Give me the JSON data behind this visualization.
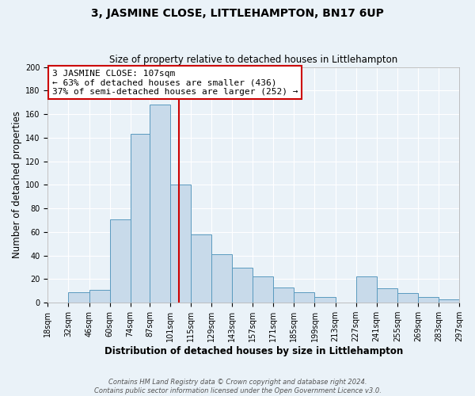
{
  "title": "3, JASMINE CLOSE, LITTLEHAMPTON, BN17 6UP",
  "subtitle": "Size of property relative to detached houses in Littlehampton",
  "xlabel": "Distribution of detached houses by size in Littlehampton",
  "ylabel": "Number of detached properties",
  "footer_lines": [
    "Contains HM Land Registry data © Crown copyright and database right 2024.",
    "Contains public sector information licensed under the Open Government Licence v3.0."
  ],
  "bar_left_edges": [
    18,
    32,
    46,
    60,
    74,
    87,
    101,
    115,
    129,
    143,
    157,
    171,
    185,
    199,
    213,
    227,
    241,
    255,
    269,
    283
  ],
  "bar_widths": [
    14,
    14,
    14,
    14,
    13,
    14,
    14,
    14,
    14,
    14,
    14,
    14,
    14,
    14,
    14,
    14,
    14,
    14,
    14,
    14
  ],
  "bar_heights": [
    0,
    9,
    11,
    71,
    143,
    168,
    100,
    58,
    41,
    30,
    22,
    13,
    9,
    5,
    0,
    22,
    12,
    8,
    5,
    3
  ],
  "bar_color": "#c8daea",
  "bar_edge_color": "#5a9abf",
  "tick_positions": [
    18,
    32,
    46,
    60,
    74,
    87,
    101,
    115,
    129,
    143,
    157,
    171,
    185,
    199,
    213,
    227,
    241,
    255,
    269,
    283,
    297
  ],
  "tick_labels": [
    "18sqm",
    "32sqm",
    "46sqm",
    "60sqm",
    "74sqm",
    "87sqm",
    "101sqm",
    "115sqm",
    "129sqm",
    "143sqm",
    "157sqm",
    "171sqm",
    "185sqm",
    "199sqm",
    "213sqm",
    "227sqm",
    "241sqm",
    "255sqm",
    "269sqm",
    "283sqm",
    "297sqm"
  ],
  "vline_x": 107,
  "vline_color": "#cc0000",
  "annotation_title": "3 JASMINE CLOSE: 107sqm",
  "annotation_line1": "← 63% of detached houses are smaller (436)",
  "annotation_line2": "37% of semi-detached houses are larger (252) →",
  "xlim": [
    18,
    297
  ],
  "ylim": [
    0,
    200
  ],
  "yticks": [
    0,
    20,
    40,
    60,
    80,
    100,
    120,
    140,
    160,
    180,
    200
  ],
  "figure_bg_color": "#eaf2f8",
  "axes_bg_color": "#eaf2f8",
  "grid_color": "#ffffff",
  "title_fontsize": 10,
  "subtitle_fontsize": 8.5,
  "axis_label_fontsize": 8.5,
  "tick_fontsize": 7,
  "annotation_fontsize": 8,
  "footer_fontsize": 6
}
